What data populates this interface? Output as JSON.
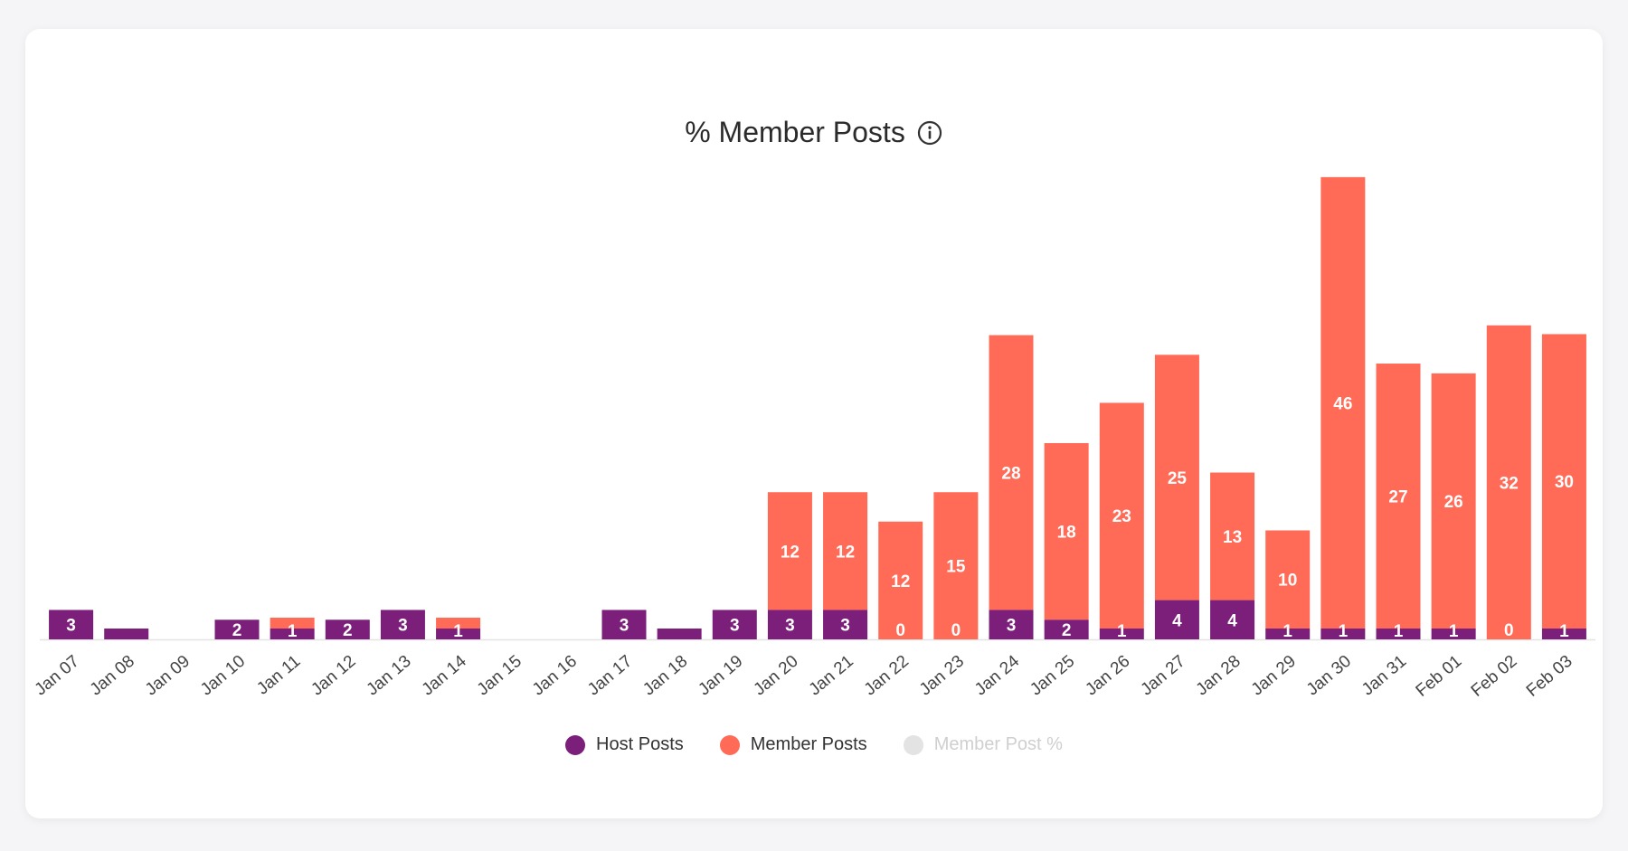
{
  "chart_data": {
    "type": "bar",
    "stacked": true,
    "title": "% Member Posts",
    "categories": [
      "Jan 07",
      "Jan 08",
      "Jan 09",
      "Jan 10",
      "Jan 11",
      "Jan 12",
      "Jan 13",
      "Jan 14",
      "Jan 15",
      "Jan 16",
      "Jan 17",
      "Jan 18",
      "Jan 19",
      "Jan 20",
      "Jan 21",
      "Jan 22",
      "Jan 23",
      "Jan 24",
      "Jan 25",
      "Jan 26",
      "Jan 27",
      "Jan 28",
      "Jan 29",
      "Jan 30",
      "Jan 31",
      "Feb 01",
      "Feb 02",
      "Feb 03"
    ],
    "series": [
      {
        "name": "Host Posts",
        "color": "#7b1f7a",
        "values": [
          3,
          1,
          0,
          2,
          1,
          2,
          3,
          1,
          0,
          0,
          3,
          1,
          3,
          3,
          3,
          0,
          0,
          3,
          2,
          1,
          4,
          4,
          1,
          1,
          1,
          1,
          0,
          1
        ],
        "labels": [
          "3",
          "",
          "",
          "2",
          "1",
          "2",
          "3",
          "1",
          "",
          "",
          "3",
          "",
          "3",
          "3",
          "3",
          "0",
          "0",
          "3",
          "2",
          "1",
          "4",
          "4",
          "1",
          "1",
          "1",
          "1",
          "0",
          "1"
        ]
      },
      {
        "name": "Member Posts",
        "color": "#ff6b57",
        "values": [
          0,
          0,
          0,
          0,
          1,
          0,
          0,
          1,
          0,
          0,
          0,
          0,
          0,
          12,
          12,
          12,
          15,
          28,
          18,
          23,
          25,
          13,
          10,
          46,
          27,
          26,
          32,
          30
        ],
        "labels": [
          "",
          "",
          "",
          "",
          "",
          "",
          "",
          "",
          "",
          "",
          "",
          "",
          "",
          "12",
          "12",
          "12",
          "15",
          "28",
          "18",
          "23",
          "25",
          "13",
          "10",
          "46",
          "27",
          "26",
          "32",
          "30"
        ]
      }
    ],
    "legend": [
      {
        "name": "Host Posts",
        "color": "#7b1f7a",
        "enabled": true
      },
      {
        "name": "Member Posts",
        "color": "#ff6b57",
        "enabled": true
      },
      {
        "name": "Member Post %",
        "color": "#e3e3e3",
        "enabled": false
      }
    ],
    "legend_position": "bottom",
    "grid": false,
    "ylim": [
      0,
      47
    ],
    "icon": "info-icon"
  }
}
